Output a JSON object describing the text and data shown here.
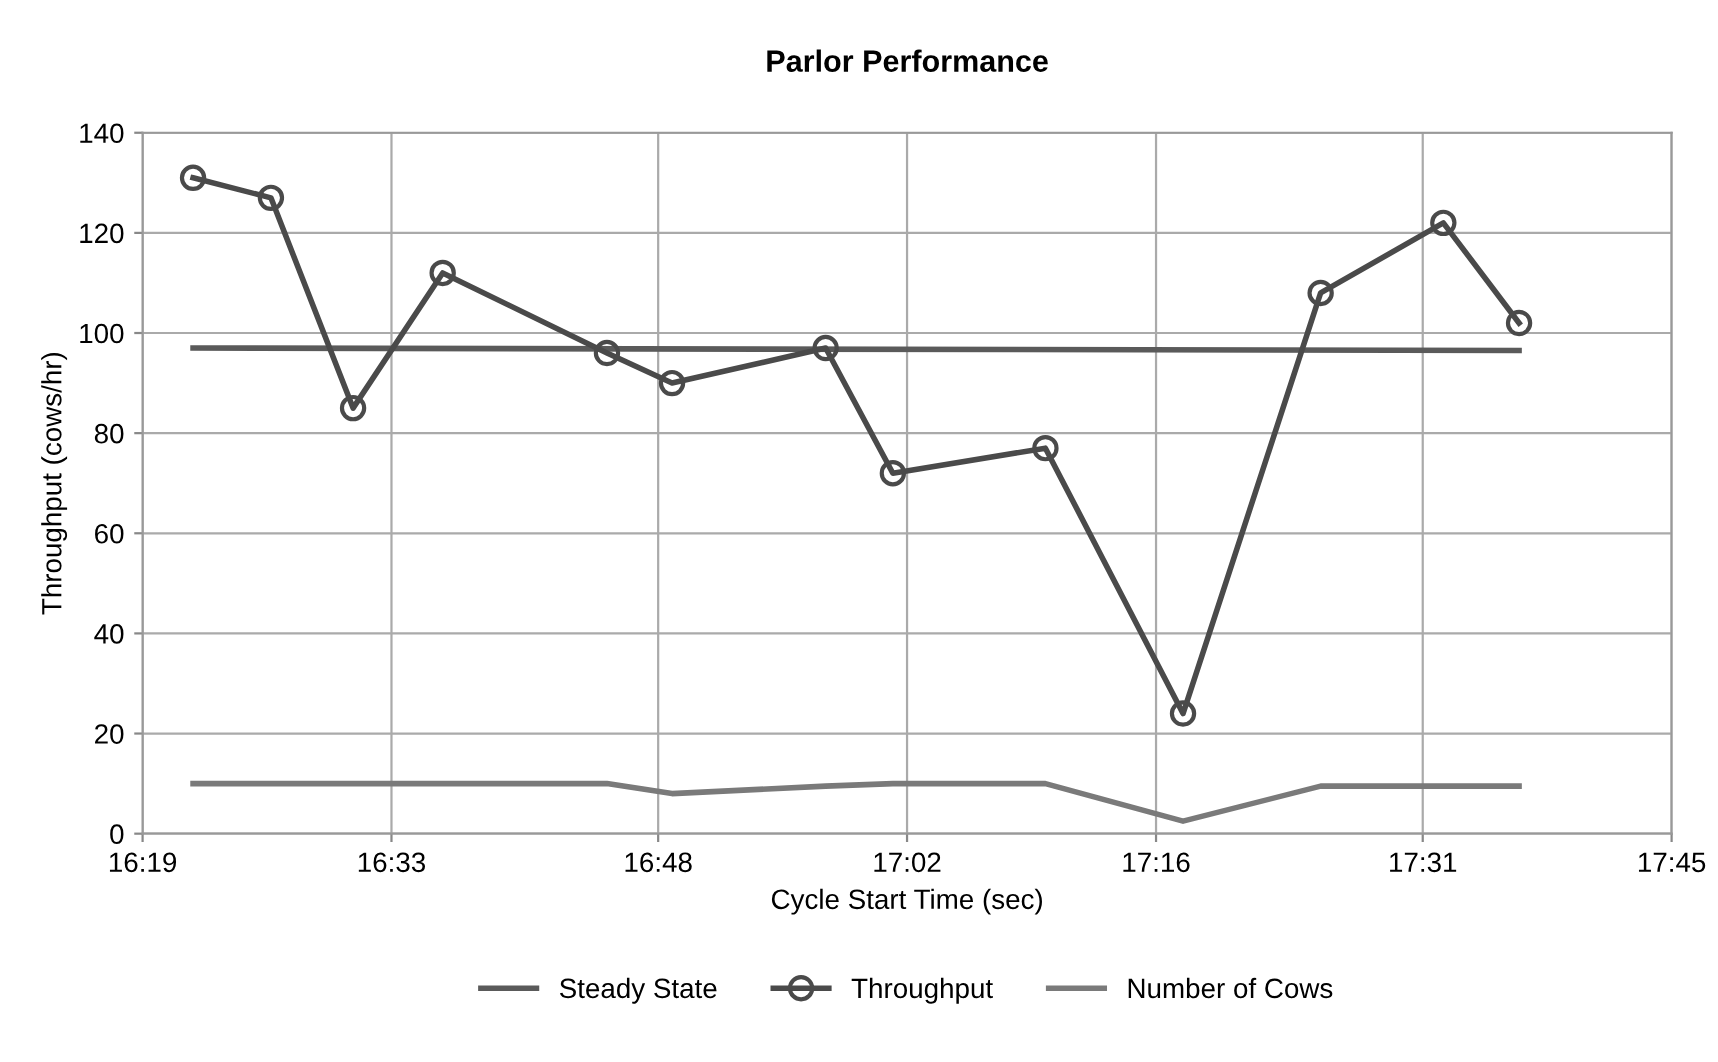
{
  "chart_data": {
    "type": "line",
    "title": "Parlor Performance",
    "xlabel": "Cycle Start Time (sec)",
    "ylabel": "Throughput (cows/hr)",
    "xlim": [
      16.3167,
      17.75
    ],
    "xticks": [
      {
        "value": 16.3167,
        "label": "16:19"
      },
      {
        "value": 16.55,
        "label": "16:33"
      },
      {
        "value": 16.8,
        "label": "16:48"
      },
      {
        "value": 17.0333,
        "label": "17:02"
      },
      {
        "value": 17.2667,
        "label": "17:16"
      },
      {
        "value": 17.5167,
        "label": "17:31"
      },
      {
        "value": 17.75,
        "label": "17:45"
      }
    ],
    "ylim": [
      0,
      140
    ],
    "yticks": [
      0,
      20,
      40,
      60,
      80,
      100,
      120,
      140
    ],
    "grid": true,
    "legend": "bottom",
    "series": [
      {
        "name": "Steady State",
        "color": "#5a5a5a",
        "marker": "none",
        "x": [
          16.364,
          17.607
        ],
        "values": [
          97,
          96.5
        ]
      },
      {
        "name": "Throughput",
        "color": "#4a4a4a",
        "marker": "circle",
        "x": [
          16.364,
          16.437,
          16.514,
          16.598,
          16.752,
          16.813,
          16.957,
          17.02,
          17.163,
          17.292,
          17.421,
          17.536,
          17.607
        ],
        "values": [
          131,
          127,
          85,
          112,
          96,
          90,
          97,
          72,
          77,
          24,
          108,
          122,
          102
        ]
      },
      {
        "name": "Number of Cows",
        "color": "#7a7a7a",
        "marker": "none",
        "x": [
          16.364,
          16.437,
          16.514,
          16.598,
          16.752,
          16.813,
          16.957,
          17.02,
          17.163,
          17.292,
          17.421,
          17.536,
          17.607
        ],
        "values": [
          10,
          10,
          10,
          10,
          10,
          8,
          9.5,
          10,
          10,
          2.5,
          9.5,
          9.5,
          9.5
        ]
      }
    ]
  }
}
